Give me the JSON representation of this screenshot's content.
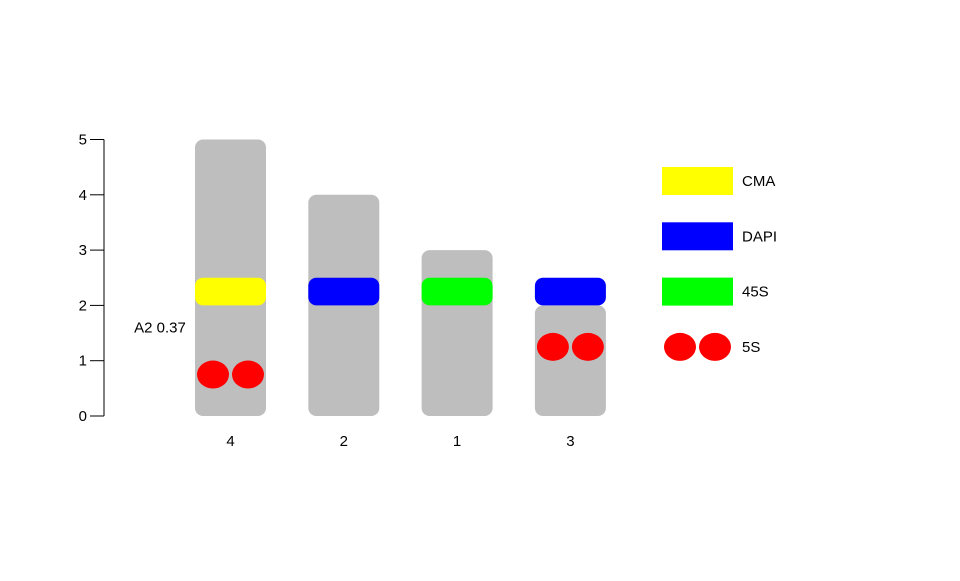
{
  "chart_data": {
    "type": "ideogram",
    "yaxis": {
      "ylim": [
        0,
        5
      ],
      "ticks": [
        "0",
        "1",
        "2",
        "3",
        "4",
        "5"
      ]
    },
    "side_label": "A2 0.37",
    "side_label_y": 1.6,
    "chromosomes": [
      {
        "name": "4",
        "length": 5,
        "color": "#bebebe",
        "bands": [
          {
            "mark": "CMA",
            "start": 2.0,
            "end": 2.5
          }
        ],
        "signals": [
          {
            "mark": "5S",
            "pos": 0.75
          }
        ]
      },
      {
        "name": "2",
        "length": 4,
        "color": "#bebebe",
        "bands": [
          {
            "mark": "DAPI",
            "start": 2.0,
            "end": 2.5
          }
        ],
        "signals": []
      },
      {
        "name": "1",
        "length": 3,
        "color": "#bebebe",
        "bands": [
          {
            "mark": "45S",
            "start": 2.0,
            "end": 2.5
          }
        ],
        "signals": []
      },
      {
        "name": "3",
        "length": 2,
        "color": "#bebebe",
        "bands": [
          {
            "mark": "DAPI",
            "start": 2.0,
            "end": 2.5
          }
        ],
        "signals": [
          {
            "mark": "5S",
            "pos": 1.25
          }
        ]
      }
    ],
    "legend": [
      {
        "label": "CMA",
        "color": "#ffff00",
        "style": "square"
      },
      {
        "label": "DAPI",
        "color": "#0000ff",
        "style": "square"
      },
      {
        "label": "45S",
        "color": "#00ff00",
        "style": "square"
      },
      {
        "label": "5S",
        "color": "#ff0000",
        "style": "dots"
      }
    ],
    "legend_position": "right"
  }
}
